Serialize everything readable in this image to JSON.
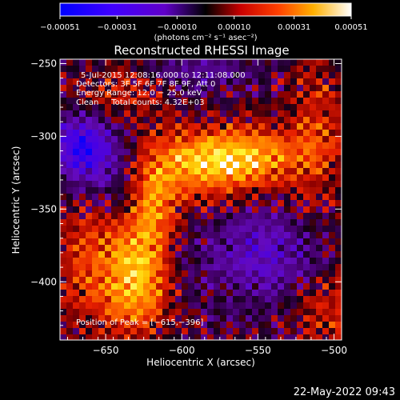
{
  "chart_data": {
    "type": "heatmap",
    "title": "Reconstructed RHESSI Image",
    "xlabel": "Heliocentric X (arcsec)",
    "ylabel": "Heliocentric Y (arcsec)",
    "xlim": [
      -680,
      -495
    ],
    "ylim": [
      -440,
      -247
    ],
    "xticks": [
      -650,
      -600,
      -550,
      -500
    ],
    "yticks": [
      -250,
      -300,
      -350,
      -400
    ],
    "xtick_labels": [
      "−650",
      "−600",
      "−550",
      "−500"
    ],
    "ytick_labels": [
      "−250",
      "−300",
      "−350",
      "−400"
    ],
    "colorbar": {
      "ticks": [
        -0.00051,
        -0.00031,
        -0.0001,
        0.0001,
        0.00031,
        0.00051
      ],
      "tick_labels": [
        "−0.00051",
        "−0.00031",
        "−0.00010",
        "0.00010",
        "0.00031",
        "0.00051"
      ],
      "unit_label": "(photons cm⁻² s⁻¹ asec⁻²)",
      "range": [
        -0.00051,
        0.00051
      ]
    },
    "info_lines": [
      "5-Jul-2015 12:08:16.000 to 12:11:08.000",
      "Detectors: 3F 5F 6F 7F 8F 9F, Att 0",
      "Energy Range: 12.0 − 25.0 keV",
      "Clean     Total counts: 4.32E+03"
    ],
    "peak_label": "Position of Peak = [−615,−396]",
    "peak_position": [
      -615,
      -396
    ],
    "regions": [
      {
        "desc": "bright loop core",
        "x": -583,
        "y": -318,
        "level": 0.85
      },
      {
        "desc": "bright arc",
        "x": -618,
        "y": -345,
        "level": 0.7
      },
      {
        "desc": "bright foot",
        "x": -628,
        "y": -400,
        "level": 0.8
      },
      {
        "desc": "negative patch",
        "x": -665,
        "y": -307,
        "level": -0.55
      },
      {
        "desc": "dark region",
        "x": -545,
        "y": -380,
        "level": -0.25
      }
    ]
  },
  "colors": {
    "background": "#000000",
    "colormap": [
      "#0000ff",
      "#7000ff",
      "#000000",
      "#ff0000",
      "#ffa000",
      "#ffff00",
      "#ffffff"
    ]
  },
  "footer": {
    "timestamp": "22-May-2022 09:43"
  }
}
